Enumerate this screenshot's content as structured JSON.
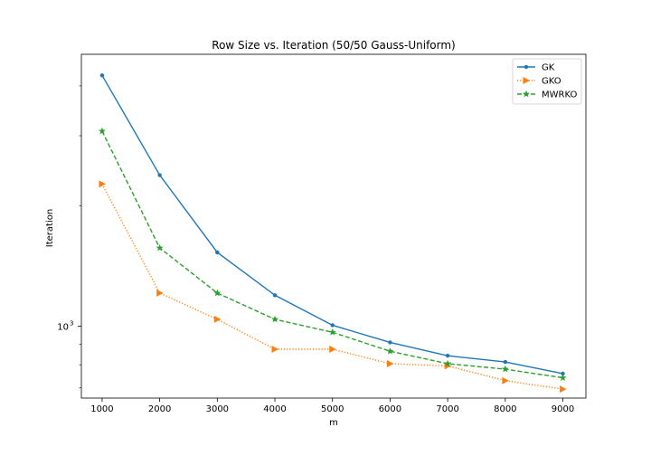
{
  "chart_data": {
    "type": "line",
    "title": "Row Size vs. Iteration (50/50 Gauss-Uniform)",
    "xlabel": "m",
    "ylabel": "Iteration",
    "x": [
      1000,
      2000,
      3000,
      4000,
      5000,
      6000,
      7000,
      8000,
      9000
    ],
    "xticks": [
      "1000",
      "2000",
      "3000",
      "4000",
      "5000",
      "6000",
      "7000",
      "8000",
      "9000"
    ],
    "xlim": [
      640,
      9400
    ],
    "yscale": "log",
    "ylim": [
      660,
      4800
    ],
    "yticks_major": [
      {
        "value": 1000,
        "label": "10",
        "exponent": "3"
      }
    ],
    "yticks_minor": [
      700,
      800,
      900,
      2000,
      3000,
      4000
    ],
    "grid": false,
    "legend": "top-right",
    "series": [
      {
        "name": "GK",
        "color": "#1f77b4",
        "marker": "dot",
        "dash": "solid",
        "values": [
          4250,
          2390,
          1530,
          1195,
          1005,
          910,
          843,
          813,
          760
        ]
      },
      {
        "name": "GKO",
        "color": "#ff7f0e",
        "marker": "triangle-right",
        "dash": "dotted",
        "values": [
          2270,
          1210,
          1040,
          875,
          875,
          805,
          795,
          730,
          695
        ]
      },
      {
        "name": "MWRKO",
        "color": "#2ca02c",
        "marker": "star",
        "dash": "dashed",
        "values": [
          3080,
          1570,
          1210,
          1040,
          965,
          865,
          805,
          780,
          742
        ]
      }
    ]
  }
}
